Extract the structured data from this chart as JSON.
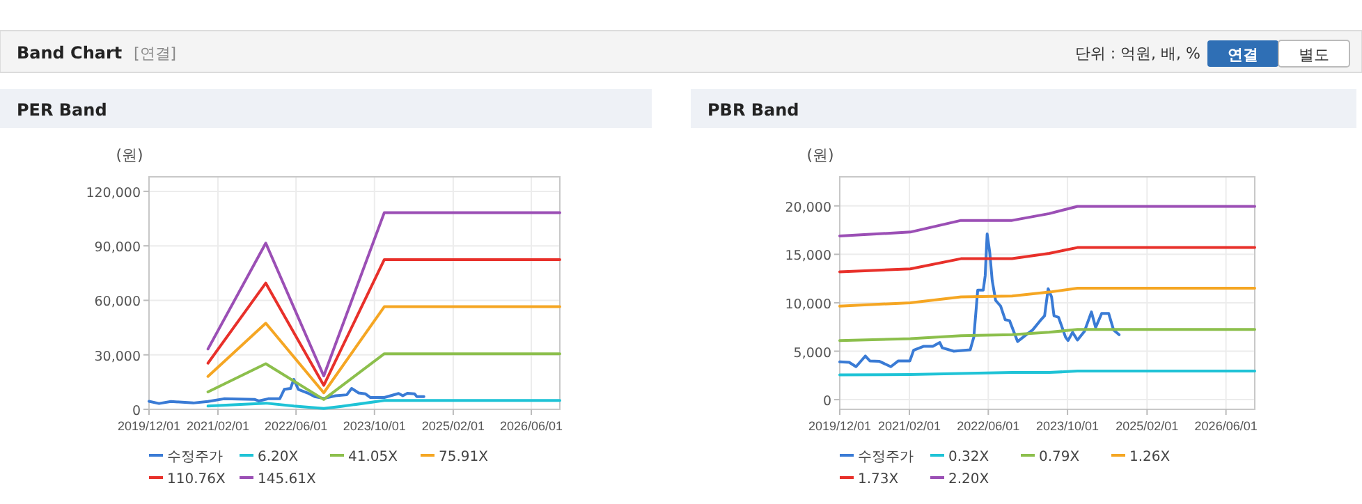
{
  "chart_data": [
    {
      "type": "other",
      "title": "Band Chart",
      "annotations": [
        "[연결]",
        "단위 : 억원, 배, %",
        "연결",
        "별도"
      ]
    },
    {
      "type": "line",
      "title": "PER Band",
      "ylabel": "(원)",
      "xlim": [
        "2019-12-01",
        "2026-11-25"
      ],
      "xticks": [
        {
          "value": "2019-12-01",
          "label": "2019/12/01"
        },
        {
          "value": "2021-02-01",
          "label": "2021/02/01"
        },
        {
          "value": "2022-06-01",
          "label": "2022/06/01"
        },
        {
          "value": "2023-10-01",
          "label": "2023/10/01"
        },
        {
          "value": "2025-02-01",
          "label": "2025/02/01"
        },
        {
          "value": "2026-06-01",
          "label": "2026/06/01"
        }
      ],
      "ylim": [
        0,
        128000
      ],
      "yticks": [
        {
          "value": 0,
          "label": "0"
        },
        {
          "value": 30000,
          "label": "30,000"
        },
        {
          "value": 60000,
          "label": "60,000"
        },
        {
          "value": 90000,
          "label": "90,000"
        },
        {
          "value": 120000,
          "label": "120,000"
        }
      ],
      "grid": true,
      "legend": "bottom",
      "marker": "none",
      "line_style": "solid",
      "series": [
        {
          "name": "수정주가",
          "color": "#3a7bd5",
          "x": [
            "2019-12-01",
            "2020-02-01",
            "2020-04-15",
            "2020-09-01",
            "2020-12-01",
            "2021-03-10",
            "2021-09-15",
            "2021-10-12",
            "2021-12-10",
            "2022-02-20",
            "2022-03-20",
            "2022-04-28",
            "2022-05-18",
            "2022-06-15",
            "2022-08-12",
            "2022-09-25",
            "2022-11-20",
            "2023-02-01",
            "2023-04-12",
            "2023-05-12",
            "2023-06-25",
            "2023-08-06",
            "2023-09-06",
            "2023-12-01",
            "2024-02-28",
            "2024-03-25",
            "2024-04-22",
            "2024-06-06",
            "2024-06-20",
            "2024-08-03"
          ],
          "values": [
            4400,
            3200,
            4300,
            3500,
            4300,
            5800,
            5500,
            4600,
            5800,
            5800,
            11000,
            11500,
            16500,
            11000,
            9000,
            7000,
            6000,
            7500,
            8000,
            11500,
            9000,
            8500,
            6500,
            6500,
            8700,
            7500,
            8800,
            8500,
            7000,
            7000
          ]
        },
        {
          "name": "6.20X",
          "color": "#1fc3d6",
          "x": [
            "2020-12-01",
            "2021-11-25",
            "2022-05-18",
            "2022-11-20",
            "2023-03-10",
            "2023-12-01",
            "2026-11-25"
          ],
          "values": [
            1800,
            3400,
            1800,
            500,
            1600,
            4900,
            4900
          ]
        },
        {
          "name": "41.05X",
          "color": "#8cbf4c",
          "x": [
            "2020-12-01",
            "2021-11-25",
            "2022-11-20",
            "2023-12-01",
            "2026-11-25"
          ],
          "values": [
            9600,
            25100,
            5400,
            30600,
            30600
          ]
        },
        {
          "name": "75.91X",
          "color": "#f5a623",
          "x": [
            "2020-12-01",
            "2021-11-25",
            "2022-11-20",
            "2023-12-01",
            "2026-11-25"
          ],
          "values": [
            18100,
            47400,
            9100,
            56500,
            56500
          ]
        },
        {
          "name": "110.76X",
          "color": "#e8302a",
          "x": [
            "2020-12-01",
            "2021-11-25",
            "2022-11-20",
            "2023-12-01",
            "2026-11-25"
          ],
          "values": [
            25400,
            69500,
            13200,
            82400,
            82400
          ]
        },
        {
          "name": "145.61X",
          "color": "#9b4fb5",
          "x": [
            "2020-12-01",
            "2021-11-25",
            "2022-11-20",
            "2023-12-01",
            "2026-11-25"
          ],
          "values": [
            33200,
            91500,
            18400,
            108300,
            108300
          ]
        }
      ]
    },
    {
      "type": "line",
      "title": "PBR Band",
      "ylabel": "(원)",
      "xlim": [
        "2019-12-01",
        "2026-11-25"
      ],
      "xticks": [
        {
          "value": "2019-12-01",
          "label": "2019/12/01"
        },
        {
          "value": "2021-02-01",
          "label": "2021/02/01"
        },
        {
          "value": "2022-06-01",
          "label": "2022/06/01"
        },
        {
          "value": "2023-10-01",
          "label": "2023/10/01"
        },
        {
          "value": "2025-02-01",
          "label": "2025/02/01"
        },
        {
          "value": "2026-06-01",
          "label": "2026/06/01"
        }
      ],
      "ylim": [
        -1000,
        23000
      ],
      "yticks": [
        {
          "value": 0,
          "label": "0"
        },
        {
          "value": 5000,
          "label": "5,000"
        },
        {
          "value": 10000,
          "label": "10,000"
        },
        {
          "value": 15000,
          "label": "15,000"
        },
        {
          "value": 20000,
          "label": "20,000"
        }
      ],
      "grid": true,
      "legend": "bottom",
      "marker": "none",
      "line_style": "solid",
      "series": [
        {
          "name": "수정주가",
          "color": "#3a7bd5",
          "x": [
            "2019-12-01",
            "2020-01-28",
            "2020-03-10",
            "2020-05-06",
            "2020-06-03",
            "2020-08-01",
            "2020-10-10",
            "2020-11-25",
            "2021-02-04",
            "2021-02-27",
            "2021-04-28",
            "2021-06-25",
            "2021-08-07",
            "2021-08-22",
            "2021-11-01",
            "2022-02-10",
            "2022-03-04",
            "2022-03-28",
            "2022-05-01",
            "2022-05-13",
            "2022-05-25",
            "2022-06-10",
            "2022-06-25",
            "2022-07-16",
            "2022-08-16",
            "2022-09-13",
            "2022-10-10",
            "2022-11-28",
            "2023-01-20",
            "2023-03-01",
            "2023-04-16",
            "2023-05-13",
            "2023-06-04",
            "2023-06-25",
            "2023-07-10",
            "2023-08-07",
            "2023-09-19",
            "2023-10-04",
            "2023-11-01",
            "2023-12-01",
            "2024-01-13",
            "2024-02-25",
            "2024-03-22",
            "2024-04-28",
            "2024-06-10",
            "2024-07-10",
            "2024-08-13"
          ],
          "values": [
            3900,
            3850,
            3400,
            4500,
            4000,
            3950,
            3400,
            4000,
            4000,
            5100,
            5500,
            5500,
            5900,
            5350,
            5000,
            5150,
            6450,
            11300,
            11300,
            12800,
            17100,
            15200,
            12300,
            10250,
            9650,
            8250,
            8150,
            6000,
            6700,
            7200,
            8150,
            8650,
            11450,
            10600,
            8650,
            8500,
            6450,
            6100,
            6950,
            6150,
            7050,
            9050,
            7450,
            8900,
            8900,
            7200,
            6700
          ]
        },
        {
          "name": "0.32X",
          "color": "#1fc3d6",
          "x": [
            "2019-12-01",
            "2021-02-07",
            "2021-12-15",
            "2022-10-25",
            "2023-06-10",
            "2023-12-01",
            "2026-11-25"
          ],
          "values": [
            2550,
            2600,
            2700,
            2800,
            2800,
            2950,
            2950
          ]
        },
        {
          "name": "0.79X",
          "color": "#8cbf4c",
          "x": [
            "2019-12-01",
            "2021-02-07",
            "2021-12-15",
            "2022-10-25",
            "2023-06-10",
            "2023-12-01",
            "2026-11-25"
          ],
          "values": [
            6100,
            6300,
            6600,
            6700,
            6950,
            7250,
            7250
          ]
        },
        {
          "name": "1.26X",
          "color": "#f5a623",
          "x": [
            "2019-12-01",
            "2021-02-07",
            "2021-12-15",
            "2022-10-25",
            "2023-06-10",
            "2023-12-01",
            "2026-11-25"
          ],
          "values": [
            9650,
            10000,
            10600,
            10700,
            11100,
            11500,
            11500
          ]
        },
        {
          "name": "1.73X",
          "color": "#e8302a",
          "x": [
            "2019-12-01",
            "2021-02-07",
            "2021-12-15",
            "2022-10-25",
            "2023-06-10",
            "2023-12-01",
            "2026-11-25"
          ],
          "values": [
            13200,
            13500,
            14550,
            14550,
            15100,
            15700,
            15700
          ]
        },
        {
          "name": "2.20X",
          "color": "#9b4fb5",
          "x": [
            "2019-12-01",
            "2021-02-07",
            "2021-12-15",
            "2022-10-25",
            "2023-06-10",
            "2023-12-01",
            "2026-11-25"
          ],
          "values": [
            16900,
            17300,
            18500,
            18500,
            19200,
            19950,
            19950
          ]
        }
      ]
    }
  ]
}
